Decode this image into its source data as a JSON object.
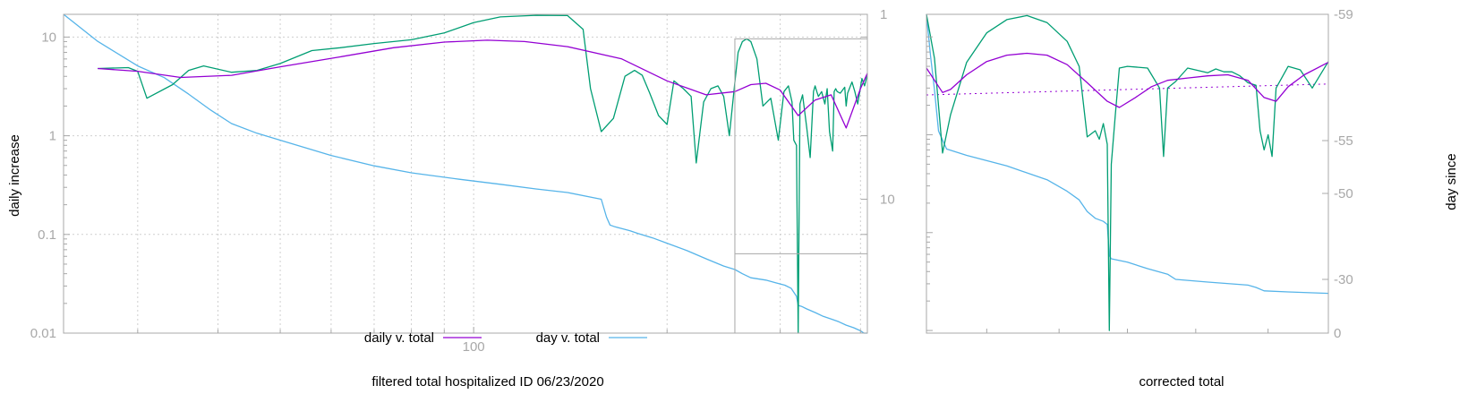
{
  "chart_data": [
    {
      "type": "line",
      "title": "",
      "xlabel": "filtered total hospitalized ID 06/23/2020",
      "ylabel": "daily increase",
      "y2label": "",
      "xscale": "log",
      "yscale": "log",
      "y2scale": "log-reversed",
      "xlim": [
        23,
        410
      ],
      "ylim": [
        0.01,
        17
      ],
      "y2lim": [
        1,
        53
      ],
      "x_ticks": [
        "100"
      ],
      "y_ticks": [
        "0.01",
        "0.1",
        "1",
        "10"
      ],
      "y2_ticks": [
        "1",
        "10"
      ],
      "grid": true,
      "legend_position": "bottom-center",
      "colors": {
        "daily": "#9400d3",
        "raw": "#009e73",
        "day": "#56b4e9"
      },
      "inset_box": {
        "x": [
          255,
          410
        ],
        "y": [
          0.01,
          9.6
        ]
      },
      "series": [
        {
          "name": "daily v. total",
          "axis": "y",
          "color": "#9400d3",
          "x": [
            26,
            30,
            35,
            42,
            50,
            62,
            75,
            90,
            105,
            120,
            140,
            170,
            200,
            230,
            255,
            270,
            285,
            300,
            320,
            340,
            360,
            380,
            400,
            410
          ],
          "y": [
            4.8,
            4.5,
            3.9,
            4.1,
            5.0,
            6.3,
            7.8,
            8.9,
            9.3,
            9.0,
            8.0,
            6.0,
            3.6,
            2.6,
            2.8,
            3.3,
            3.4,
            2.9,
            1.6,
            2.3,
            2.6,
            1.2,
            3.0,
            4.3
          ]
        },
        {
          "name": "",
          "axis": "y",
          "color": "#009e73",
          "x": [
            26,
            29,
            30,
            31,
            34,
            36,
            38,
            42,
            46,
            50,
            56,
            62,
            70,
            80,
            90,
            100,
            110,
            125,
            140,
            148,
            152,
            158,
            165,
            172,
            178,
            183,
            188,
            194,
            200,
            205,
            212,
            218,
            222,
            228,
            234,
            240,
            245,
            250,
            255,
            258,
            262,
            266,
            270,
            276,
            282,
            290,
            298,
            304,
            309,
            313,
            315,
            318,
            320,
            322,
            325,
            330,
            334,
            338,
            340,
            342,
            344,
            348,
            352,
            355,
            358,
            362,
            364,
            366,
            368,
            372,
            378,
            380,
            382,
            388,
            392,
            396,
            402,
            406,
            410
          ],
          "y": [
            4.8,
            4.9,
            4.5,
            2.4,
            3.3,
            4.6,
            5.1,
            4.4,
            4.6,
            5.4,
            7.3,
            7.8,
            8.6,
            9.4,
            11.0,
            14.0,
            16.0,
            16.6,
            16.5,
            12.0,
            3.0,
            1.1,
            1.5,
            4.0,
            4.6,
            4.1,
            2.7,
            1.6,
            1.3,
            3.6,
            3.0,
            2.5,
            0.53,
            2.2,
            3.0,
            3.2,
            2.5,
            1.0,
            3.5,
            7.0,
            9.0,
            9.6,
            9.0,
            6.0,
            2.0,
            2.4,
            0.9,
            2.8,
            3.2,
            2.2,
            0.9,
            0.8,
            0.01,
            2.1,
            2.6,
            1.2,
            0.6,
            2.8,
            3.2,
            2.8,
            2.5,
            2.8,
            2.1,
            3.0,
            1.1,
            0.7,
            2.8,
            3.0,
            2.8,
            2.7,
            3.1,
            2.0,
            2.7,
            3.5,
            2.8,
            2.1,
            3.8,
            3.2,
            4.2
          ]
        },
        {
          "name": "day v. total",
          "axis": "y2",
          "color": "#56b4e9",
          "x": [
            23,
            26,
            30,
            33,
            36,
            39,
            42,
            46,
            52,
            60,
            70,
            80,
            95,
            110,
            125,
            140,
            158,
            161,
            163,
            166,
            170,
            175,
            180,
            190,
            200,
            215,
            230,
            245,
            255,
            262,
            270,
            285,
            295,
            305,
            312,
            318,
            320,
            324,
            330,
            340,
            350,
            360,
            370,
            380,
            390,
            400,
            405,
            410
          ],
          "y": [
            1.0,
            1.4,
            1.9,
            2.2,
            2.7,
            3.3,
            3.9,
            4.4,
            5.0,
            5.8,
            6.6,
            7.2,
            7.8,
            8.3,
            8.8,
            9.2,
            10.0,
            12.5,
            13.8,
            14.1,
            14.4,
            14.8,
            15.3,
            16.2,
            17.3,
            19.0,
            21.0,
            23.0,
            24.0,
            25.3,
            26.6,
            27.4,
            28.3,
            29.2,
            30.3,
            33.5,
            37.5,
            38.0,
            39.2,
            41.0,
            43.0,
            44.5,
            46.0,
            48.0,
            49.5,
            51.5,
            53.0,
            53.0
          ]
        }
      ]
    },
    {
      "type": "line",
      "title": "",
      "xlabel": "corrected total",
      "ylabel": "",
      "y2label": "day since",
      "ylim": [
        0.0094,
        17
      ],
      "yscale": "log",
      "y2scale": "linear",
      "y2lim": [
        0,
        -59
      ],
      "y2_ticks": [
        "-59",
        "-55",
        "-50",
        "-30",
        "0"
      ],
      "grid": false,
      "colors": {
        "daily": "#9400d3",
        "raw": "#009e73",
        "day": "#56b4e9",
        "ref": "#9400d3"
      },
      "series": [
        {
          "name": "",
          "axis": "y",
          "color": "#9400d3",
          "x": [
            0,
            0.02,
            0.04,
            0.06,
            0.1,
            0.15,
            0.2,
            0.25,
            0.3,
            0.35,
            0.4,
            0.45,
            0.48,
            0.52,
            0.56,
            0.6,
            0.65,
            0.7,
            0.75,
            0.8,
            0.84,
            0.87,
            0.9,
            0.94,
            1.0
          ],
          "y": [
            4.8,
            3.6,
            2.7,
            2.9,
            4.1,
            5.6,
            6.5,
            6.8,
            6.5,
            5.2,
            3.4,
            2.2,
            1.9,
            2.4,
            3.1,
            3.6,
            3.8,
            4.0,
            4.1,
            3.6,
            2.4,
            2.2,
            3.1,
            4.1,
            5.5
          ]
        },
        {
          "name": "",
          "axis": "y",
          "color": "#009e73",
          "x": [
            0,
            0.02,
            0.04,
            0.06,
            0.1,
            0.15,
            0.2,
            0.25,
            0.3,
            0.35,
            0.38,
            0.4,
            0.42,
            0.43,
            0.44,
            0.45,
            0.455,
            0.46,
            0.47,
            0.48,
            0.5,
            0.55,
            0.58,
            0.59,
            0.6,
            0.62,
            0.65,
            0.7,
            0.72,
            0.74,
            0.76,
            0.78,
            0.8,
            0.82,
            0.83,
            0.84,
            0.85,
            0.86,
            0.87,
            0.9,
            0.93,
            0.96,
            1.0
          ],
          "y": [
            17,
            6.0,
            0.65,
            1.6,
            5.5,
            11.0,
            15.0,
            16.5,
            14.0,
            9.0,
            5.0,
            0.95,
            1.1,
            0.9,
            1.3,
            0.8,
            0.01,
            0.5,
            1.6,
            4.8,
            5.0,
            4.8,
            3.0,
            0.6,
            3.0,
            3.5,
            4.8,
            4.3,
            4.7,
            4.4,
            4.4,
            4.0,
            3.4,
            3.2,
            1.1,
            0.7,
            1.0,
            0.6,
            3.0,
            5.0,
            4.6,
            3.0,
            5.6
          ]
        },
        {
          "name": "",
          "axis": "y2",
          "color": "#56b4e9",
          "x": [
            0,
            0.01,
            0.02,
            0.03,
            0.05,
            0.1,
            0.2,
            0.3,
            0.35,
            0.38,
            0.4,
            0.42,
            0.44,
            0.45,
            0.455,
            0.46,
            0.5,
            0.55,
            0.6,
            0.62,
            0.7,
            0.8,
            0.82,
            0.84,
            0.9,
            1.0
          ],
          "y": [
            -59,
            -57.7,
            -56.6,
            -55.3,
            -54.2,
            -53.6,
            -52.6,
            -51.3,
            -50.2,
            -48.5,
            -45.8,
            -44.2,
            -43.5,
            -42.8,
            -35.5,
            -34.8,
            -34.0,
            -32.5,
            -31.2,
            -30.0,
            -28.5,
            -26.8,
            -25.5,
            -23.6,
            -23.0,
            -22.2
          ]
        },
        {
          "name": "",
          "axis": "y",
          "color": "#9400d3",
          "dashed": true,
          "x": [
            0,
            1.0
          ],
          "y": [
            2.55,
            3.3
          ]
        }
      ]
    }
  ]
}
